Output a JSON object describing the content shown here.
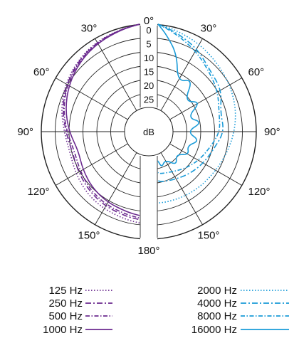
{
  "chart_data": {
    "type": "polar",
    "title": "",
    "center_label": "dB",
    "radial_unit": "dB",
    "radial_ticks": [
      0,
      5,
      10,
      15,
      20,
      25
    ],
    "radial_range": [
      30,
      0
    ],
    "angle_labels": [
      {
        "angle": 0,
        "text": "0°"
      },
      {
        "angle": 30,
        "text": "30°"
      },
      {
        "angle": 60,
        "text": "60°"
      },
      {
        "angle": 90,
        "text": "90°"
      },
      {
        "angle": 120,
        "text": "120°"
      },
      {
        "angle": 150,
        "text": "150°"
      },
      {
        "angle": 180,
        "text": "180°"
      },
      {
        "angle": -30,
        "text": "30°"
      },
      {
        "angle": -60,
        "text": "60°"
      },
      {
        "angle": -90,
        "text": "90°"
      },
      {
        "angle": -120,
        "text": "120°"
      },
      {
        "angle": -150,
        "text": "150°"
      }
    ],
    "left_half_color": "#6b2a8f",
    "right_half_color": "#1a9bd8",
    "series": [
      {
        "name": "125 Hz",
        "half": "left",
        "color": "#6b2a8f",
        "dash": "dotted",
        "theta": [
          0,
          15,
          30,
          45,
          60,
          75,
          90,
          105,
          120,
          135,
          150,
          165,
          180
        ],
        "attenuation_db": [
          0,
          0.4,
          1.2,
          2.5,
          4.1,
          6.0,
          8.2,
          9.3,
          8.4,
          7.2,
          6.5,
          6.0,
          5.8
        ]
      },
      {
        "name": "250 Hz",
        "half": "left",
        "color": "#6b2a8f",
        "dash": "dashdot",
        "theta": [
          0,
          15,
          30,
          45,
          60,
          75,
          90,
          105,
          120,
          135,
          150,
          165,
          180
        ],
        "attenuation_db": [
          0,
          0.5,
          1.4,
          2.8,
          4.5,
          6.5,
          8.8,
          10.2,
          9.5,
          8.4,
          7.6,
          7.1,
          7.0
        ]
      },
      {
        "name": "500 Hz",
        "half": "left",
        "color": "#6b2a8f",
        "dash": "dashdot2",
        "theta": [
          0,
          15,
          30,
          45,
          60,
          75,
          90,
          105,
          120,
          135,
          150,
          165,
          180
        ],
        "attenuation_db": [
          0,
          0.5,
          1.5,
          3.0,
          4.8,
          6.8,
          9.2,
          11.0,
          10.2,
          9.0,
          8.2,
          7.8,
          7.6
        ]
      },
      {
        "name": "1000 Hz",
        "half": "left",
        "color": "#6b2a8f",
        "dash": "solid",
        "theta": [
          0,
          15,
          30,
          45,
          60,
          75,
          90,
          105,
          120,
          135,
          150,
          165,
          180
        ],
        "attenuation_db": [
          0,
          0.6,
          1.8,
          3.4,
          5.4,
          7.6,
          10.0,
          12.4,
          11.3,
          10.0,
          9.2,
          8.7,
          8.5
        ]
      },
      {
        "name": "2000 Hz",
        "half": "right",
        "color": "#1a9bd8",
        "dash": "dotted",
        "theta": [
          0,
          15,
          30,
          45,
          60,
          75,
          90,
          105,
          120,
          135,
          150,
          165,
          180
        ],
        "attenuation_db": [
          0,
          0.8,
          2.2,
          3.8,
          5.0,
          6.2,
          7.8,
          9.5,
          10.8,
          11.5,
          12.0,
          12.5,
          13.0
        ]
      },
      {
        "name": "4000 Hz",
        "half": "right",
        "color": "#1a9bd8",
        "dash": "dashdot",
        "theta": [
          0,
          15,
          30,
          45,
          60,
          75,
          90,
          105,
          120,
          135,
          150,
          165,
          180
        ],
        "attenuation_db": [
          0,
          1.5,
          4.0,
          7.5,
          8.5,
          12.0,
          11.5,
          14.5,
          16.0,
          17.5,
          19.0,
          20.0,
          21.0
        ]
      },
      {
        "name": "8000 Hz",
        "half": "right",
        "color": "#1a9bd8",
        "dash": "dashdot2",
        "theta": [
          0,
          15,
          30,
          45,
          60,
          75,
          90,
          105,
          120,
          135,
          150,
          165,
          180
        ],
        "attenuation_db": [
          0,
          2.0,
          5.0,
          8.0,
          10.0,
          12.5,
          13.0,
          16.0,
          18.0,
          20.0,
          22.0,
          23.0,
          24.0
        ]
      },
      {
        "name": "16000 Hz",
        "half": "right",
        "color": "#1a9bd8",
        "dash": "solid",
        "theta": [
          0,
          10,
          20,
          30,
          40,
          50,
          60,
          70,
          80,
          90,
          100,
          110,
          120,
          130,
          140,
          150,
          160,
          170,
          180
        ],
        "attenuation_db": [
          0,
          3,
          9,
          18,
          14,
          22,
          17,
          24,
          19,
          25,
          20,
          24,
          22,
          26,
          23,
          27,
          25,
          28,
          28
        ]
      }
    ],
    "legend": {
      "left_column": [
        "125 Hz",
        "250 Hz",
        "500 Hz",
        "1000 Hz"
      ],
      "right_column": [
        "2000 Hz",
        "4000 Hz",
        "8000 Hz",
        "16000 Hz"
      ]
    }
  }
}
